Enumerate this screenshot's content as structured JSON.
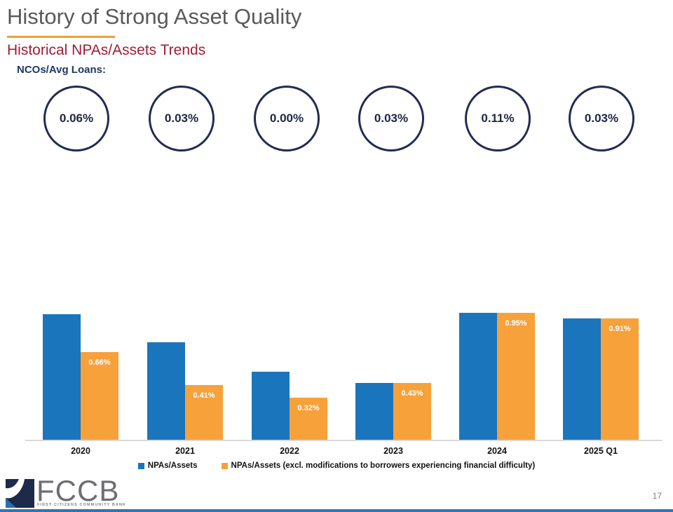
{
  "slide": {
    "title": "History of Strong Asset Quality",
    "subtitle": "Historical NPAs/Assets Trends",
    "page_number": "17"
  },
  "nco": {
    "label": "NCOs/Avg Loans:",
    "values": [
      "0.06%",
      "0.03%",
      "0.00%",
      "0.03%",
      "0.11%",
      "0.03%"
    ]
  },
  "chart_data": {
    "type": "bar",
    "title": "",
    "xlabel": "",
    "ylabel": "",
    "unit": "%",
    "categories": [
      "2020",
      "2021",
      "2022",
      "2023",
      "2024",
      "2025 Q1"
    ],
    "series": [
      {
        "name": "NPAs/Assets",
        "color": "#1B75BC",
        "values": [
          0.94,
          0.73,
          0.51,
          0.43,
          0.95,
          0.91
        ],
        "data_labels": [
          "",
          "",
          "",
          "",
          "",
          ""
        ]
      },
      {
        "name": "NPAs/Assets (excl. modifications to borrowers experiencing financial difficulty)",
        "color": "#F7A13B",
        "values": [
          0.66,
          0.41,
          0.32,
          0.43,
          0.95,
          0.91
        ],
        "data_labels": [
          "0.66%",
          "0.41%",
          "0.32%",
          "0.43%",
          "0.95%",
          "0.91%"
        ]
      }
    ],
    "ylim": [
      0,
      1.0
    ],
    "y_axis_visible": false,
    "grid": false,
    "legend_position": "bottom"
  },
  "logo": {
    "text": "FCCB",
    "tagline": "FIRST CITIZENS COMMUNITY BANK"
  },
  "colors": {
    "title_gray": "#595959",
    "accent_gold": "#E9A23B",
    "subtitle_red": "#A01D35",
    "label_navy": "#1F3864",
    "circle_border_navy": "#232C51",
    "bar_blue": "#1B75BC",
    "bar_orange": "#F7A13B",
    "axis_gray": "#DADADA",
    "bottom_bar_blue": "#2E75B6"
  }
}
